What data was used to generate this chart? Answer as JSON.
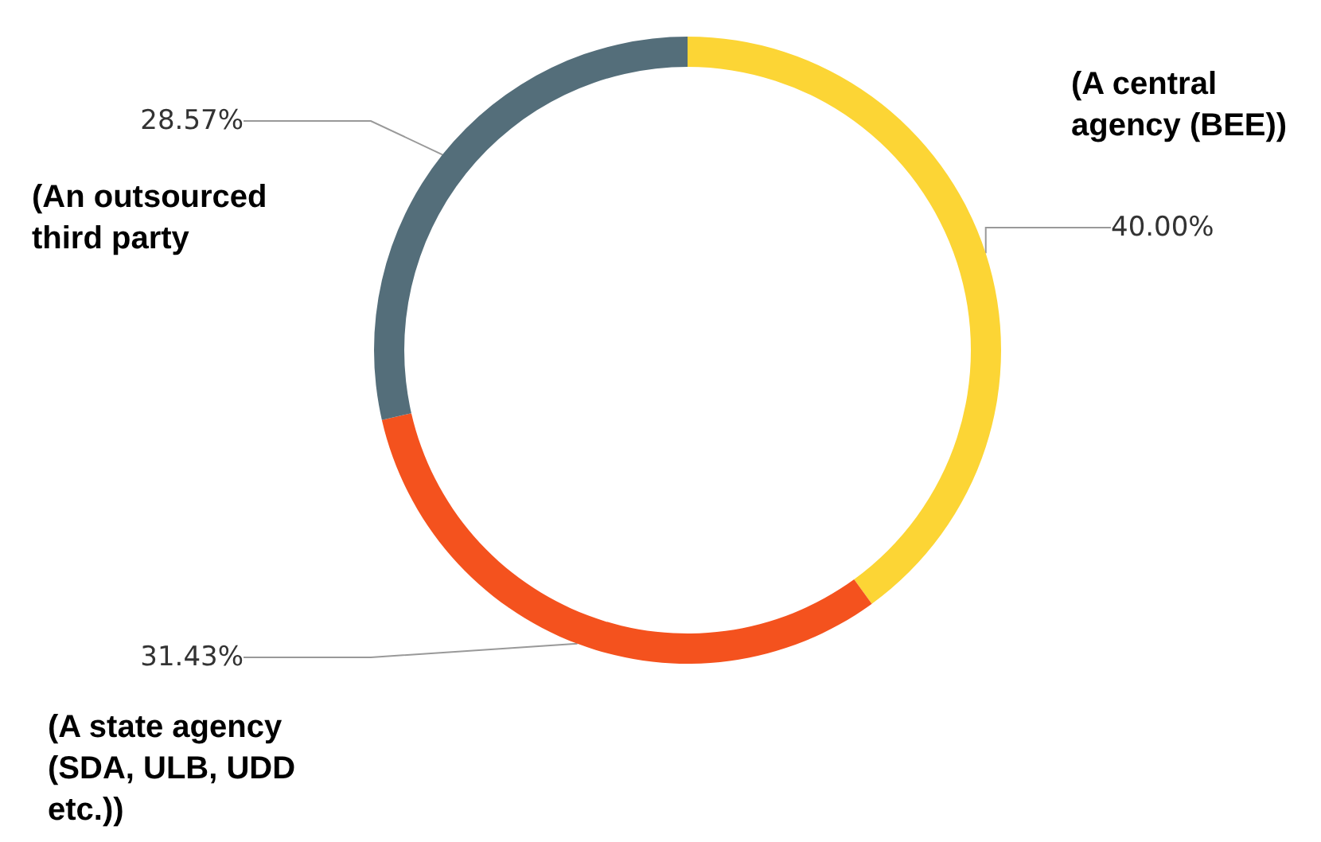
{
  "chart_data": {
    "type": "donut",
    "categories": [
      "(A central agency (BEE))",
      "(A state agency (SDA, ULB, UDD etc.))",
      "(An outsourced third party"
    ],
    "values": [
      40.0,
      31.43,
      28.57
    ],
    "value_labels": [
      "40.00%",
      "31.43%",
      "28.57%"
    ],
    "colors": [
      "#fcd535",
      "#f4521e",
      "#546e7a"
    ],
    "legend": false
  }
}
